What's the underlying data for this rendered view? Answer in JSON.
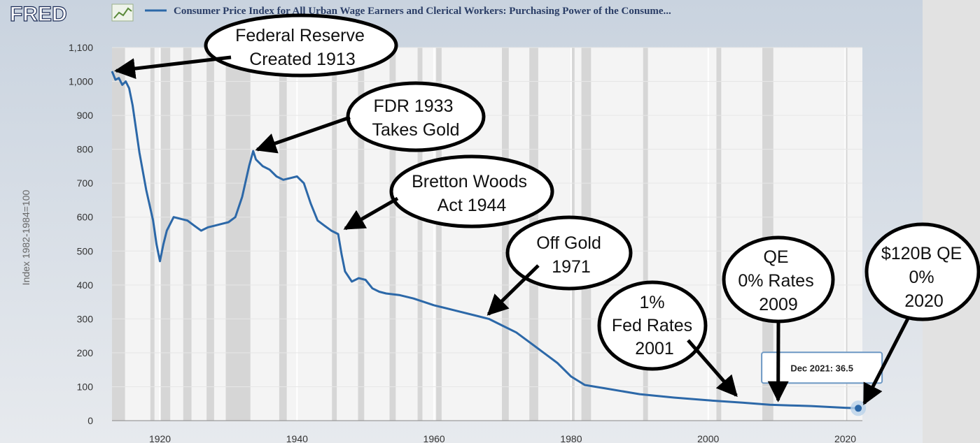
{
  "header": {
    "logo": "FRED",
    "legend_label": "Consumer Price Index for All Urban Wage Earners and Clerical Workers: Purchasing Power of the Consume..."
  },
  "chart_data": {
    "type": "line",
    "title": "Consumer Price Index for All Urban Wage Earners and Clerical Workers: Purchasing Power of the Consume...",
    "ylabel": "Index 1982-1984=100",
    "xlabel": "",
    "xlim": [
      1913,
      2022.5
    ],
    "ylim": [
      0,
      1100
    ],
    "x_ticks": [
      "1920",
      "1940",
      "1960",
      "1980",
      "2000",
      "2020"
    ],
    "y_ticks": [
      "0",
      "100",
      "200",
      "300",
      "400",
      "500",
      "600",
      "700",
      "800",
      "900",
      "1,000",
      "1,100"
    ],
    "grid": true,
    "series_color": "#2c68a8",
    "recession_shading": [
      [
        1913.0,
        1914.9
      ],
      [
        1918.6,
        1919.2
      ],
      [
        1920.0,
        1921.5
      ],
      [
        1923.4,
        1924.6
      ],
      [
        1926.8,
        1927.9
      ],
      [
        1929.6,
        1933.2
      ],
      [
        1937.4,
        1938.5
      ],
      [
        1945.1,
        1945.8
      ],
      [
        1948.9,
        1949.8
      ],
      [
        1953.5,
        1954.4
      ],
      [
        1957.6,
        1958.3
      ],
      [
        1960.3,
        1961.1
      ],
      [
        1969.9,
        1970.9
      ],
      [
        1973.9,
        1975.2
      ],
      [
        1980.0,
        1980.5
      ],
      [
        1981.5,
        1982.9
      ],
      [
        1990.5,
        1991.2
      ],
      [
        2001.2,
        2001.9
      ],
      [
        2007.9,
        2009.5
      ],
      [
        2020.1,
        2020.3
      ]
    ],
    "series": [
      {
        "x": [
          1913,
          1913.5,
          1914,
          1914.5,
          1915,
          1915.5,
          1916,
          1917,
          1918,
          1919,
          1919.5,
          1920,
          1920.5,
          1921,
          1922,
          1923,
          1924,
          1925,
          1926,
          1927,
          1928,
          1929,
          1930,
          1931,
          1932,
          1933,
          1933.6,
          1934,
          1935,
          1936,
          1937,
          1938,
          1939,
          1940,
          1941,
          1942,
          1943,
          1944,
          1945,
          1946,
          1946.5,
          1947,
          1948,
          1949,
          1950,
          1951,
          1952,
          1953,
          1955,
          1957,
          1960,
          1963,
          1966,
          1968,
          1970,
          1972,
          1974,
          1976,
          1978,
          1980,
          1982,
          1985,
          1990,
          1995,
          2000,
          2005,
          2009,
          2012,
          2015,
          2018,
          2020,
          2021.9
        ],
        "values": [
          1030,
          1005,
          1010,
          990,
          1000,
          980,
          930,
          790,
          680,
          590,
          520,
          470,
          520,
          560,
          600,
          595,
          590,
          575,
          560,
          570,
          575,
          580,
          585,
          600,
          660,
          750,
          795,
          770,
          750,
          740,
          720,
          710,
          715,
          720,
          700,
          640,
          590,
          575,
          560,
          550,
          490,
          440,
          410,
          420,
          415,
          390,
          380,
          375,
          370,
          360,
          340,
          325,
          310,
          300,
          280,
          260,
          230,
          200,
          170,
          130,
          105,
          95,
          78,
          68,
          60,
          53,
          47,
          45,
          43,
          40,
          38,
          36.5
        ]
      }
    ],
    "tooltip": {
      "label": "Dec 2021: 36.5",
      "x": 2021.9,
      "value": 36.5
    },
    "annotations": [
      {
        "lines": [
          "Federal Reserve",
          "Created 1913"
        ],
        "target_x": 1913,
        "target_value": 1030
      },
      {
        "lines": [
          "FDR 1933",
          "Takes Gold"
        ],
        "target_x": 1933.6,
        "target_value": 795
      },
      {
        "lines": [
          "Bretton Woods",
          "Act 1944"
        ],
        "target_x": 1946.5,
        "target_value": 560
      },
      {
        "lines": [
          "Off Gold",
          "1971"
        ],
        "target_x": 1967.5,
        "target_value": 305
      },
      {
        "lines": [
          "1%",
          "Fed Rates",
          "2001"
        ],
        "target_x": 2004.5,
        "target_value": 65
      },
      {
        "lines": [
          "QE",
          "0% Rates",
          "2009"
        ],
        "target_x": 2010.2,
        "target_value": 48
      },
      {
        "lines": [
          "$120B QE",
          "0%",
          "2020"
        ],
        "target_x": 2022.5,
        "target_value": 40
      }
    ]
  }
}
